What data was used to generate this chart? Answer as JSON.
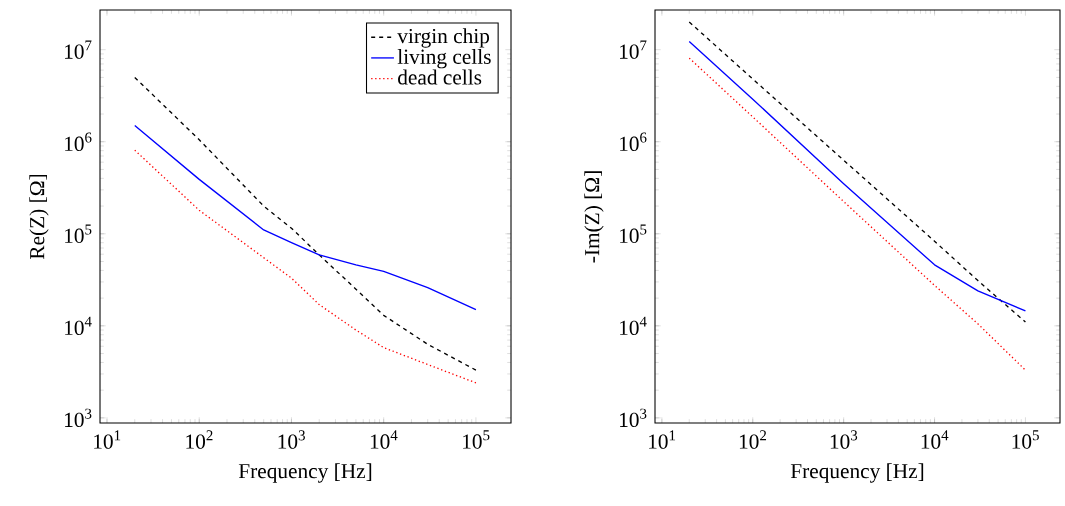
{
  "chart_data": [
    {
      "type": "line",
      "xlabel": "Frequency [Hz]",
      "ylabel": "Re(Z) [Ω]",
      "log": "xy",
      "xlim": [
        8.4,
        240000
      ],
      "ylim": [
        880,
        27000000
      ],
      "xticks": [
        {
          "value": 10,
          "label": "10$^{1}$"
        },
        {
          "value": 100,
          "label": "10$^{2}$"
        },
        {
          "value": 1000,
          "label": "10$^{3}$"
        },
        {
          "value": 10000,
          "label": "10$^{4}$"
        },
        {
          "value": 100000,
          "label": "10$^{5}$"
        }
      ],
      "yticks": [
        {
          "value": 1000,
          "label": "10$^{3}$"
        },
        {
          "value": 10000,
          "label": "10$^{4}$"
        },
        {
          "value": 100000,
          "label": "10$^{5}$"
        },
        {
          "value": 1000000,
          "label": "10$^{6}$"
        },
        {
          "value": 10000000,
          "label": "10$^{7}$"
        }
      ],
      "legend": "top right",
      "marker": "none",
      "x": [
        20,
        100,
        500,
        1000,
        2000,
        5000,
        10000,
        30000,
        100000
      ],
      "series": [
        {
          "name": "virgin chip",
          "color": "#000000",
          "line_style": "dashed",
          "values": [
            5000000,
            1050000,
            200000,
            115000,
            59000,
            25000,
            13000,
            6300,
            3300
          ]
        },
        {
          "name": "living cells",
          "color": "#0000ff",
          "line_style": "solid",
          "values": [
            1500000,
            390000,
            110000,
            80000,
            59000,
            46000,
            39000,
            26000,
            15000
          ]
        },
        {
          "name": "dead cells",
          "color": "#ff0000",
          "line_style": "dotted",
          "values": [
            810000,
            180000,
            55000,
            33000,
            17000,
            9000,
            5800,
            3800,
            2400
          ]
        }
      ]
    },
    {
      "type": "line",
      "xlabel": "Frequency [Hz]",
      "ylabel": "-Im(Z) [Ω]",
      "log": "xy",
      "xlim": [
        8.4,
        240000
      ],
      "ylim": [
        880,
        27000000
      ],
      "xticks": [
        {
          "value": 10,
          "label": "10$^{1}$"
        },
        {
          "value": 100,
          "label": "10$^{2}$"
        },
        {
          "value": 1000,
          "label": "10$^{3}$"
        },
        {
          "value": 10000,
          "label": "10$^{4}$"
        },
        {
          "value": 100000,
          "label": "10$^{5}$"
        }
      ],
      "yticks": [
        {
          "value": 1000,
          "label": "10$^{3}$"
        },
        {
          "value": 10000,
          "label": "10$^{4}$"
        },
        {
          "value": 100000,
          "label": "10$^{5}$"
        },
        {
          "value": 1000000,
          "label": "10$^{6}$"
        },
        {
          "value": 10000000,
          "label": "10$^{7}$"
        }
      ],
      "marker": "none",
      "x": [
        20,
        100,
        1000,
        10000,
        30000,
        100000
      ],
      "series": [
        {
          "color": "#000000",
          "line_style": "dashed",
          "values": [
            20000000,
            4800000,
            630000,
            83000,
            31000,
            11000
          ]
        },
        {
          "color": "#0000ff",
          "line_style": "solid",
          "values": [
            12300000,
            2900000,
            350000,
            46000,
            24000,
            14500
          ]
        },
        {
          "color": "#ff0000",
          "line_style": "dotted",
          "values": [
            8100000,
            1860000,
            224000,
            27500,
            10500,
            3300
          ]
        }
      ]
    }
  ]
}
